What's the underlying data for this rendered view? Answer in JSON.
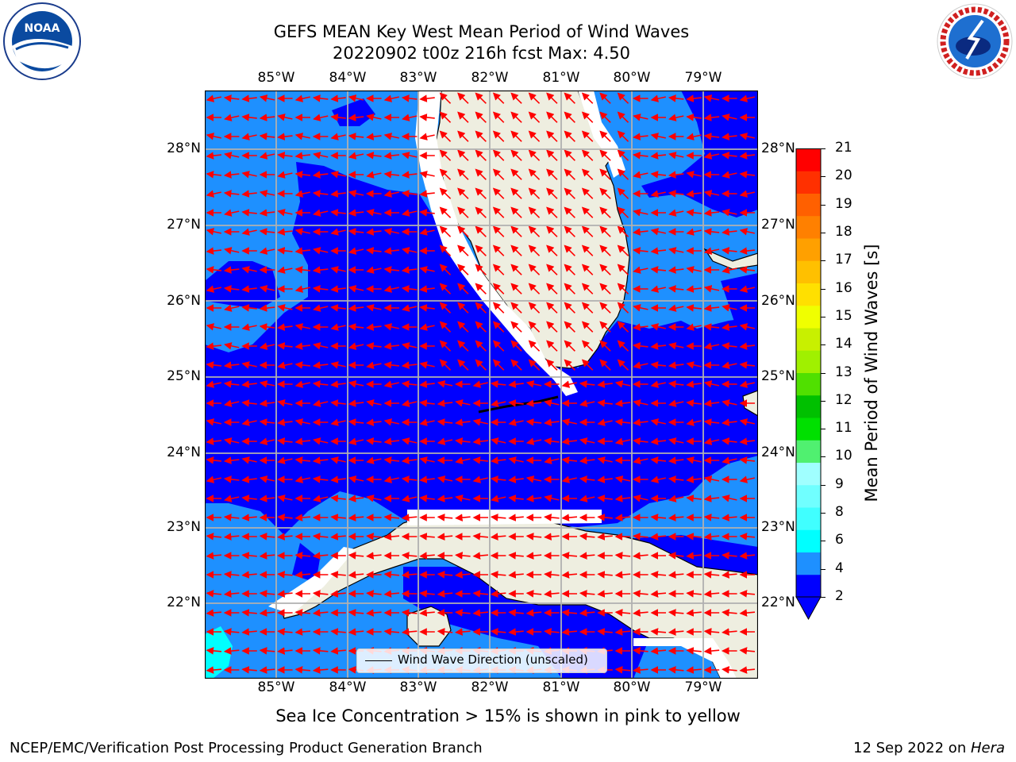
{
  "header": {
    "title_line1": "GEFS MEAN Key West Mean Period of Wind Waves",
    "title_line2": "20220902 t00z 216h fcst   Max: 4.50"
  },
  "logos": {
    "left": "NOAA",
    "right": "NATIONAL WEATHER SERVICE"
  },
  "map": {
    "region": "Florida Straits / Key West",
    "lon_labels": [
      "85°W",
      "84°W",
      "83°W",
      "82°W",
      "81°W",
      "80°W",
      "79°W"
    ],
    "lat_labels": [
      "28°N",
      "27°N",
      "26°N",
      "25°N",
      "24°N",
      "23°N",
      "22°N"
    ],
    "land_color": "#eeeee0",
    "fill_colors": {
      "2-4": "#0000ff",
      "4-6": "#1e90ff",
      "6-8": "#00ffff"
    },
    "arrow_color": "#ff0000",
    "legend_label": "Wind Wave Direction (unscaled)"
  },
  "colorbar": {
    "label": "Mean Period of Wind Waves [s]",
    "ticks": [
      "2",
      "4",
      "6",
      "8",
      "9",
      "10",
      "11",
      "12",
      "13",
      "14",
      "15",
      "16",
      "17",
      "18",
      "19",
      "20",
      "21"
    ],
    "colors": [
      "#0000ff",
      "#1e90ff",
      "#00ffff",
      "#40ffff",
      "#70ffff",
      "#a0ffff",
      "#50f070",
      "#00e000",
      "#00c000",
      "#50e000",
      "#a0f000",
      "#c8f000",
      "#f0ff00",
      "#ffe000",
      "#ffc000",
      "#ffa000",
      "#ff8000",
      "#ff6000",
      "#ff3000",
      "#ff0000"
    ]
  },
  "caption": "Sea Ice Concentration > 15% is shown in pink to yellow",
  "footer": {
    "left": "NCEP/EMC/Verification Post Processing Product Generation Branch",
    "right_date": "12 Sep 2022 on ",
    "right_host": "Hera"
  }
}
